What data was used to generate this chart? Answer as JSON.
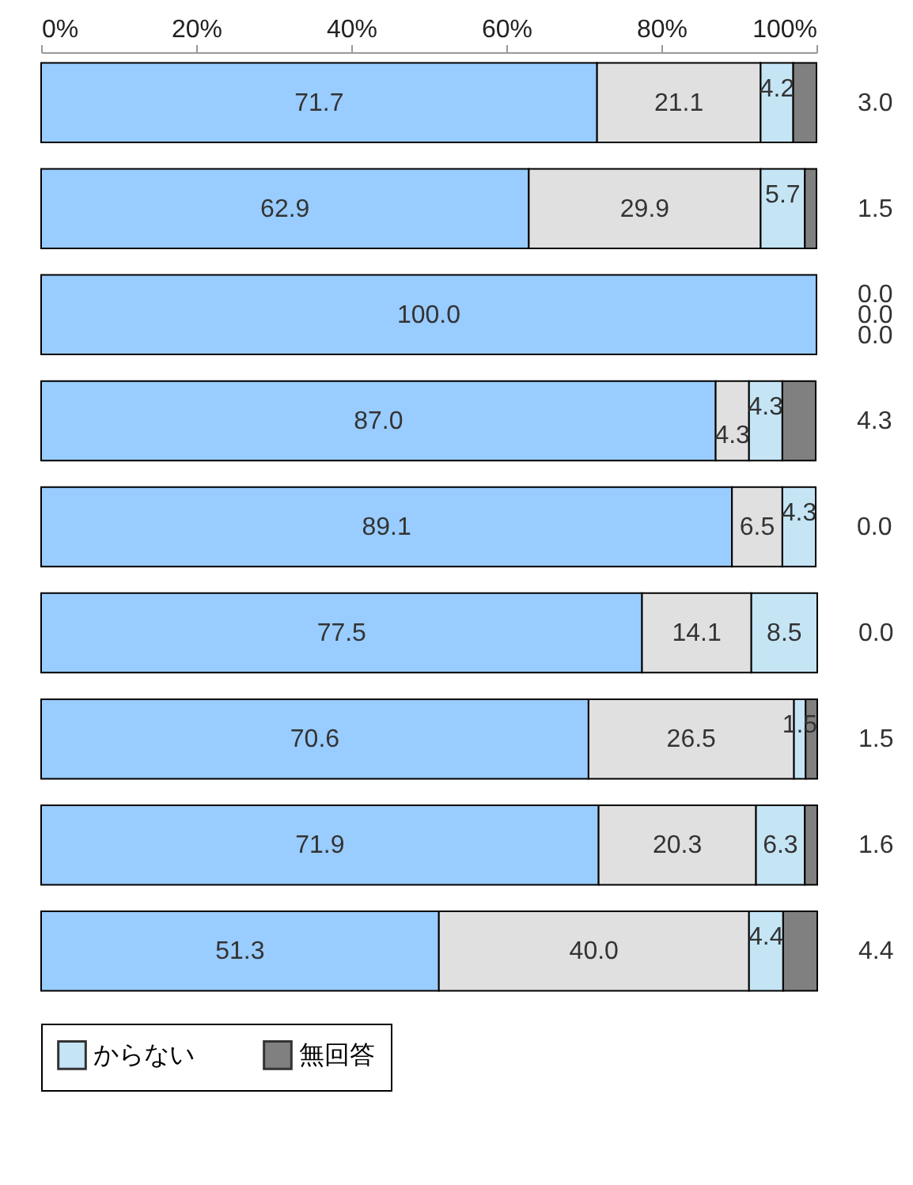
{
  "chart_data": {
    "type": "bar",
    "orientation": "horizontal",
    "stacked": true,
    "grid": false,
    "legend": "bottom",
    "categories": [
      null,
      null,
      null,
      null,
      null,
      null,
      null,
      null,
      null
    ],
    "xlim": [
      0,
      100
    ],
    "xticks": [
      {
        "value": 0,
        "label": "0%"
      },
      {
        "value": 20,
        "label": "20%"
      },
      {
        "value": 40,
        "label": "40%"
      },
      {
        "value": 60,
        "label": "60%"
      },
      {
        "value": 80,
        "label": "80%"
      },
      {
        "value": 100,
        "label": "100%"
      }
    ],
    "series": [
      {
        "color": "#99ccff",
        "values": [
          71.7,
          62.9,
          100.0,
          87.0,
          89.1,
          77.5,
          70.6,
          71.9,
          51.3
        ],
        "value_labels": [
          "71.7",
          "62.9",
          "100.0",
          "87.0",
          "89.1",
          "77.5",
          "70.6",
          "71.9",
          "51.3"
        ]
      },
      {
        "color": "#e0e0e0",
        "values": [
          21.1,
          29.9,
          0.0,
          4.3,
          6.5,
          14.1,
          26.5,
          20.3,
          40.0
        ],
        "value_labels": [
          "21.1",
          "29.9",
          "0.0",
          "4.3",
          "6.5",
          "14.1",
          "26.5",
          "20.3",
          "40.0"
        ]
      },
      {
        "name": "からない",
        "color": "#c5e5f5",
        "values": [
          4.2,
          5.7,
          0.0,
          4.3,
          4.3,
          8.5,
          1.5,
          6.3,
          4.4
        ],
        "value_labels": [
          "4.2",
          "5.7",
          "0.0",
          "4.3",
          "4.3",
          "8.5",
          "1.5",
          "6.3",
          "4.4"
        ]
      },
      {
        "name": "無回答",
        "color": "#808080",
        "values": [
          3.0,
          1.5,
          0.0,
          4.3,
          0.0,
          0.0,
          1.5,
          1.6,
          4.4
        ],
        "value_labels": [
          "3.0",
          "1.5",
          "0.0",
          "4.3",
          "0.0",
          "0.0",
          "1.5",
          "1.6",
          "4.4"
        ]
      }
    ]
  }
}
